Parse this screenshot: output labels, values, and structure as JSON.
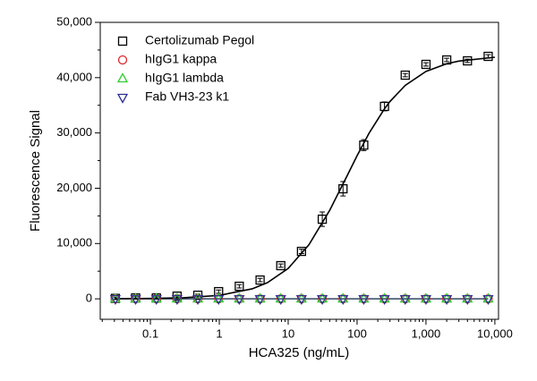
{
  "chart_data": {
    "type": "scatter",
    "xlabel": "HCA325 (ng/mL)",
    "ylabel": "Fluorescence Signal",
    "x": [
      0.031,
      0.061,
      0.122,
      0.244,
      0.488,
      0.977,
      1.95,
      3.91,
      7.81,
      15.6,
      31.25,
      62.5,
      125,
      250,
      500,
      1000,
      2000,
      4000,
      8000
    ],
    "series": [
      {
        "name": "Certolizumab Pegol",
        "color": "#000000",
        "marker": "square",
        "values": [
          80,
          160,
          160,
          490,
          650,
          1300,
          2270,
          3400,
          6000,
          8580,
          14400,
          19900,
          27800,
          34800,
          40450,
          42400,
          43200,
          43040,
          43850
        ],
        "errors": [
          200,
          200,
          200,
          200,
          200,
          300,
          300,
          300,
          300,
          400,
          1300,
          1300,
          1000,
          800,
          300,
          300,
          300,
          300,
          300
        ]
      },
      {
        "name": "hIgG1 kappa",
        "color": "#e0262b",
        "marker": "circle",
        "values": [
          0,
          0,
          0,
          0,
          0,
          0,
          0,
          0,
          0,
          0,
          0,
          0,
          0,
          0,
          0,
          0,
          0,
          0,
          0
        ]
      },
      {
        "name": "hIgG1 lambda",
        "color": "#33cc33",
        "marker": "triangle-up",
        "values": [
          0,
          0,
          0,
          0,
          0,
          0,
          0,
          0,
          0,
          0,
          0,
          0,
          0,
          0,
          0,
          0,
          0,
          0,
          0
        ]
      },
      {
        "name": "Fab VH3-23 k1",
        "color": "#2e3192",
        "marker": "triangle-down",
        "values": [
          0,
          0,
          0,
          0,
          0,
          0,
          0,
          0,
          0,
          0,
          0,
          0,
          0,
          0,
          0,
          0,
          0,
          0,
          0
        ]
      }
    ],
    "fit_curve": {
      "color": "#000000",
      "x": [
        0.03,
        0.1,
        0.3,
        1,
        3,
        5,
        10,
        20,
        40,
        70,
        100,
        150,
        250,
        300,
        500,
        1000,
        2000,
        3000,
        10000
      ],
      "y": [
        19,
        63,
        188,
        620,
        1808,
        2933,
        5500,
        9778,
        16000,
        22000,
        25882,
        30000,
        34375,
        35676,
        38596,
        41121,
        42512,
        42997,
        43694
      ]
    },
    "xscale": "log",
    "xlim": [
      0.0187,
      11300
    ],
    "ylim": [
      -3700,
      50000
    ],
    "xticks": [
      0.1,
      1,
      10,
      100,
      {
        "value": 1000,
        "label": "1,000"
      },
      {
        "value": 10000,
        "label": "10,000"
      }
    ],
    "yticks": [
      0,
      {
        "value": 10000,
        "label": "10,000"
      },
      {
        "value": 20000,
        "label": "20,000"
      },
      {
        "value": 30000,
        "label": "30,000"
      },
      {
        "value": 40000,
        "label": "40,000"
      },
      {
        "value": 50000,
        "label": "50,000"
      }
    ],
    "legend": "upper left"
  }
}
